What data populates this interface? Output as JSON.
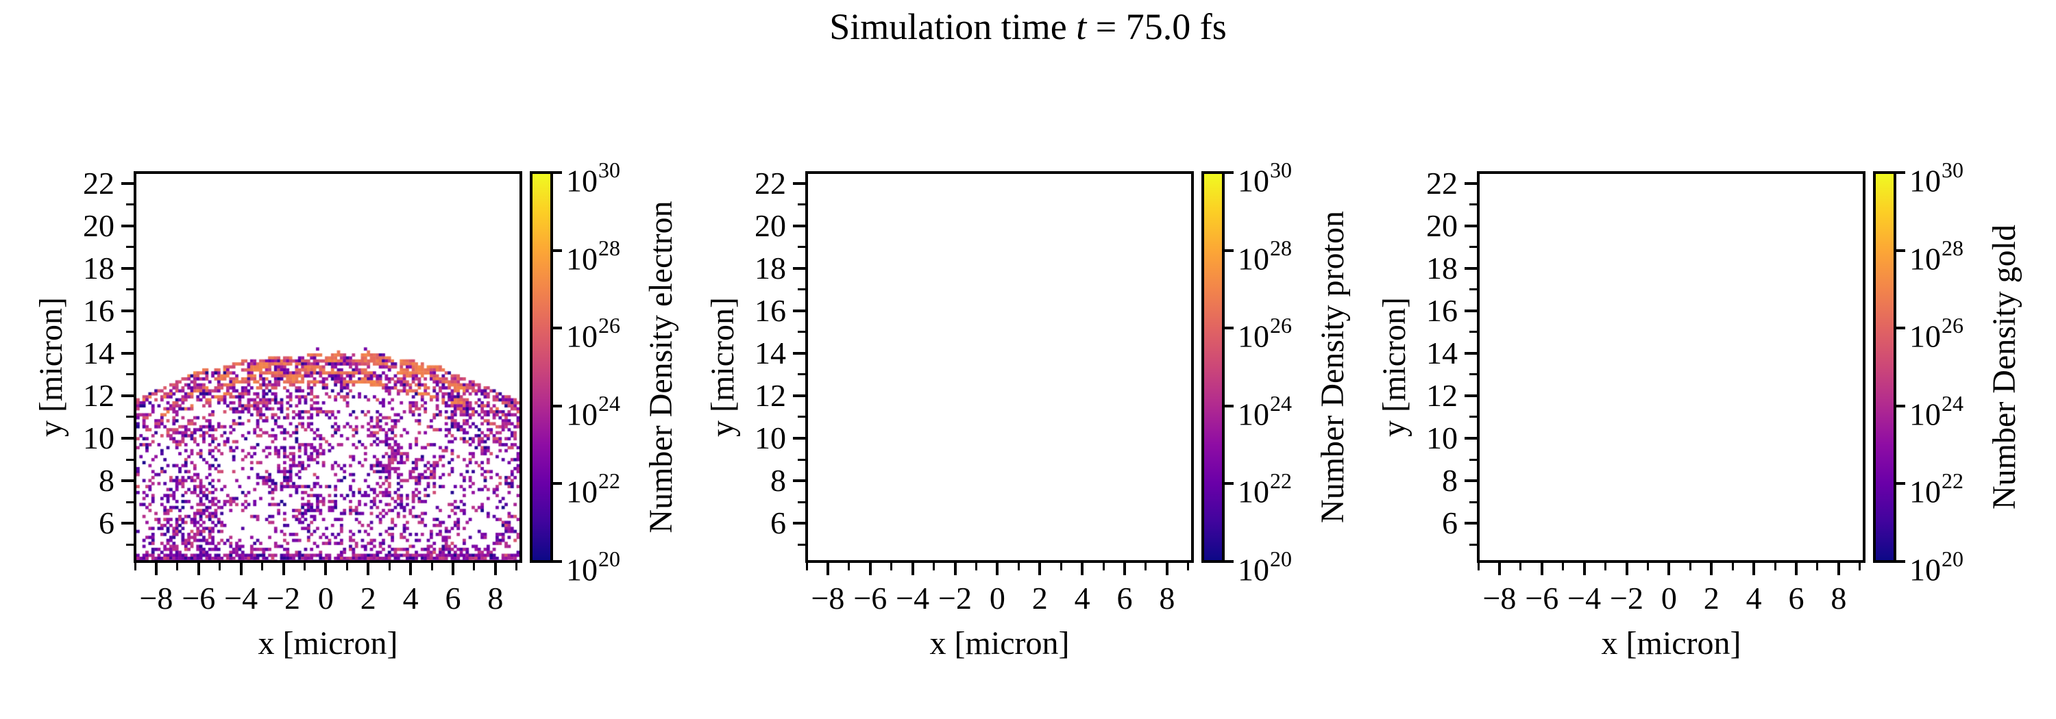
{
  "figure": {
    "title_prefix": "Simulation time ",
    "title_var": "t",
    "title_suffix": " = 75.0 fs",
    "background": "#ffffff"
  },
  "colormap": {
    "name": "plasma",
    "stops": [
      "#0d0887",
      "#41049d",
      "#6a00a8",
      "#8f0da4",
      "#b12a90",
      "#cc4778",
      "#e16462",
      "#f2844b",
      "#fca636",
      "#fcce25",
      "#f0f921"
    ]
  },
  "axis_style": {
    "tick_color": "#000000",
    "spine_color": "#000000"
  },
  "panels": [
    {
      "species": "electron",
      "xlabel": "x [micron]",
      "ylabel": "y [micron]",
      "colorbar_label": "Number Density electron",
      "has_data": true,
      "x_ticks": {
        "major": [
          {
            "v": -8,
            "label": "−8"
          },
          {
            "v": -6,
            "label": "−6"
          },
          {
            "v": -4,
            "label": "−4"
          },
          {
            "v": -2,
            "label": "−2"
          },
          {
            "v": 0,
            "label": "0"
          },
          {
            "v": 2,
            "label": "2"
          },
          {
            "v": 4,
            "label": "4"
          },
          {
            "v": 6,
            "label": "6"
          },
          {
            "v": 8,
            "label": "8"
          }
        ],
        "minor_values": [
          -9,
          -7,
          -5,
          -3,
          -1,
          1,
          3,
          5,
          7,
          9
        ]
      },
      "y_ticks": {
        "major": [
          {
            "v": 6,
            "label": "6"
          },
          {
            "v": 8,
            "label": "8"
          },
          {
            "v": 10,
            "label": "10"
          },
          {
            "v": 12,
            "label": "12"
          },
          {
            "v": 14,
            "label": "14"
          },
          {
            "v": 16,
            "label": "16"
          },
          {
            "v": 18,
            "label": "18"
          },
          {
            "v": 20,
            "label": "20"
          },
          {
            "v": 22,
            "label": "22"
          }
        ],
        "minor_values": [
          5,
          7,
          9,
          11,
          13,
          15,
          17,
          19,
          21
        ]
      },
      "colorbar_ticks": [
        {
          "base": "10",
          "exp": "30"
        },
        {
          "base": "10",
          "exp": "28"
        },
        {
          "base": "10",
          "exp": "26"
        },
        {
          "base": "10",
          "exp": "24"
        },
        {
          "base": "10",
          "exp": "22"
        },
        {
          "base": "10",
          "exp": "20"
        }
      ]
    },
    {
      "species": "proton",
      "xlabel": "x [micron]",
      "ylabel": "y [micron]",
      "colorbar_label": "Number Density proton",
      "has_data": false,
      "x_ticks": {
        "major": [
          {
            "v": -8,
            "label": "−8"
          },
          {
            "v": -6,
            "label": "−6"
          },
          {
            "v": -4,
            "label": "−4"
          },
          {
            "v": -2,
            "label": "−2"
          },
          {
            "v": 0,
            "label": "0"
          },
          {
            "v": 2,
            "label": "2"
          },
          {
            "v": 4,
            "label": "4"
          },
          {
            "v": 6,
            "label": "6"
          },
          {
            "v": 8,
            "label": "8"
          }
        ],
        "minor_values": [
          -9,
          -7,
          -5,
          -3,
          -1,
          1,
          3,
          5,
          7,
          9
        ]
      },
      "y_ticks": {
        "major": [
          {
            "v": 6,
            "label": "6"
          },
          {
            "v": 8,
            "label": "8"
          },
          {
            "v": 10,
            "label": "10"
          },
          {
            "v": 12,
            "label": "12"
          },
          {
            "v": 14,
            "label": "14"
          },
          {
            "v": 16,
            "label": "16"
          },
          {
            "v": 18,
            "label": "18"
          },
          {
            "v": 20,
            "label": "20"
          },
          {
            "v": 22,
            "label": "22"
          }
        ],
        "minor_values": [
          5,
          7,
          9,
          11,
          13,
          15,
          17,
          19,
          21
        ]
      },
      "colorbar_ticks": [
        {
          "base": "10",
          "exp": "30"
        },
        {
          "base": "10",
          "exp": "28"
        },
        {
          "base": "10",
          "exp": "26"
        },
        {
          "base": "10",
          "exp": "24"
        },
        {
          "base": "10",
          "exp": "22"
        },
        {
          "base": "10",
          "exp": "20"
        }
      ]
    },
    {
      "species": "gold",
      "xlabel": "x [micron]",
      "ylabel": "y [micron]",
      "colorbar_label": "Number Density gold",
      "has_data": false,
      "x_ticks": {
        "major": [
          {
            "v": -8,
            "label": "−8"
          },
          {
            "v": -6,
            "label": "−6"
          },
          {
            "v": -4,
            "label": "−4"
          },
          {
            "v": -2,
            "label": "−2"
          },
          {
            "v": 0,
            "label": "0"
          },
          {
            "v": 2,
            "label": "2"
          },
          {
            "v": 4,
            "label": "4"
          },
          {
            "v": 6,
            "label": "6"
          },
          {
            "v": 8,
            "label": "8"
          }
        ],
        "minor_values": [
          -9,
          -7,
          -5,
          -3,
          -1,
          1,
          3,
          5,
          7,
          9
        ]
      },
      "y_ticks": {
        "major": [
          {
            "v": 6,
            "label": "6"
          },
          {
            "v": 8,
            "label": "8"
          },
          {
            "v": 10,
            "label": "10"
          },
          {
            "v": 12,
            "label": "12"
          },
          {
            "v": 14,
            "label": "14"
          },
          {
            "v": 16,
            "label": "16"
          },
          {
            "v": 18,
            "label": "18"
          },
          {
            "v": 20,
            "label": "20"
          },
          {
            "v": 22,
            "label": "22"
          }
        ],
        "minor_values": [
          5,
          7,
          9,
          11,
          13,
          15,
          17,
          19,
          21
        ]
      },
      "colorbar_ticks": [
        {
          "base": "10",
          "exp": "30"
        },
        {
          "base": "10",
          "exp": "28"
        },
        {
          "base": "10",
          "exp": "26"
        },
        {
          "base": "10",
          "exp": "24"
        },
        {
          "base": "10",
          "exp": "22"
        },
        {
          "base": "10",
          "exp": "20"
        }
      ]
    }
  ],
  "chart_data": [
    {
      "type": "heatmap",
      "title": "Simulation time t = 75.0 fs",
      "series_label": "Number Density electron",
      "xlabel": "x [micron]",
      "ylabel": "y [micron]",
      "xlim": [
        -9.0,
        9.2
      ],
      "ylim": [
        4.2,
        22.5
      ],
      "grid": false,
      "color_scale": {
        "type": "log",
        "min": 1e+20,
        "max": 1e+30,
        "cmap": "plasma",
        "unit": "m^-3"
      },
      "content": "Pixelated 2D electron number-density histogram of an expanding hemispherical plasma plume; concentric shell arcs below a dense salmon-colored crest at the apex, sparse purple/magenta speckle filling the dome interior down to the lower boundary.",
      "structure": {
        "dome_center_x": 0.0,
        "dome_center_y": -5.3,
        "dome_outer_radius": 19.3,
        "apex_y": 14.0,
        "shell_radii": [
          19.3,
          18.9,
          18.35,
          17.8,
          17.2,
          16.5,
          15.7,
          14.9,
          14.0,
          13.0,
          11.8,
          10.5
        ],
        "shell_amplitudes": [
          0.9,
          0.55,
          0.5,
          0.45,
          0.42,
          0.38,
          0.33,
          0.28,
          0.22,
          0.18,
          0.14,
          0.1
        ],
        "shell_sigma": 0.1,
        "boundary_sigma": 0.16,
        "crest_radius_range": [
          17.9,
          19.3
        ],
        "background_fill": 0.3,
        "bottom_edge_band_y": 4.5,
        "cell_size_micron": 0.142,
        "value_levels_log10": {
          "background_specks": [
            20.5,
            24.5
          ],
          "shell_arcs": [
            24.5,
            26.0
          ],
          "crest_filaments": [
            26.0,
            27.5
          ]
        }
      },
      "seed": 1234567
    },
    {
      "type": "heatmap",
      "series_label": "Number Density proton",
      "xlabel": "x [micron]",
      "ylabel": "y [micron]",
      "xlim": [
        -9.0,
        9.2
      ],
      "ylim": [
        4.2,
        22.5
      ],
      "grid": false,
      "color_scale": {
        "type": "log",
        "min": 1e+20,
        "max": 1e+30,
        "cmap": "plasma",
        "unit": "m^-3"
      },
      "content": "empty — no proton density above 1e20 anywhere in the domain",
      "empty": true
    },
    {
      "type": "heatmap",
      "series_label": "Number Density gold",
      "xlabel": "x [micron]",
      "ylabel": "y [micron]",
      "xlim": [
        -9.0,
        9.2
      ],
      "ylim": [
        4.2,
        22.5
      ],
      "grid": false,
      "color_scale": {
        "type": "log",
        "min": 1e+20,
        "max": 1e+30,
        "cmap": "plasma",
        "unit": "m^-3"
      },
      "content": "empty — no gold density above 1e20 anywhere in the domain",
      "empty": true
    }
  ]
}
